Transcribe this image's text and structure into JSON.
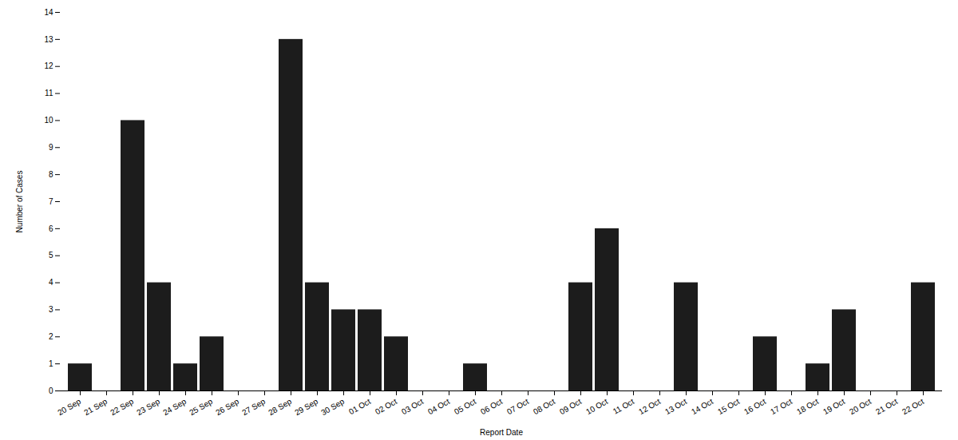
{
  "chart_data": {
    "type": "bar",
    "categories": [
      "20 Sep",
      "21 Sep",
      "22 Sep",
      "23 Sep",
      "24 Sep",
      "25 Sep",
      "26 Sep",
      "27 Sep",
      "28 Sep",
      "29 Sep",
      "30 Sep",
      "01 Oct",
      "02 Oct",
      "03 Oct",
      "04 Oct",
      "05 Oct",
      "06 Oct",
      "07 Oct",
      "08 Oct",
      "09 Oct",
      "10 Oct",
      "11 Oct",
      "12 Oct",
      "13 Oct",
      "14 Oct",
      "15 Oct",
      "16 Oct",
      "17 Oct",
      "18 Oct",
      "19 Oct",
      "20 Oct",
      "21 Oct",
      "22 Oct"
    ],
    "values": [
      1,
      0,
      10,
      4,
      1,
      2,
      0,
      0,
      13,
      4,
      3,
      3,
      2,
      0,
      0,
      1,
      0,
      0,
      0,
      4,
      6,
      0,
      0,
      4,
      0,
      0,
      2,
      0,
      1,
      3,
      0,
      0,
      4
    ],
    "color": "#1c1c1c",
    "x_label": "Report Date",
    "y_label": "Number of Cases",
    "ylim": [
      0,
      14
    ],
    "yticks": [
      0,
      1,
      2,
      3,
      4,
      5,
      6,
      7,
      8,
      9,
      10,
      11,
      12,
      13,
      14
    ],
    "grid": false
  }
}
